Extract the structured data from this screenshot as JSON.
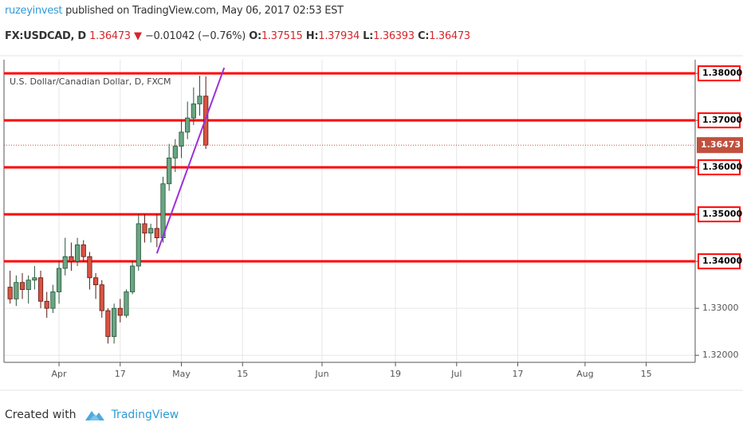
{
  "header": {
    "author": "ruzeyinvest",
    "published": "published on TradingView.com, May 06, 2017 02:53 EST",
    "symbol": "FX:USDCAD, D",
    "arrow": "▼",
    "change": "−0.01042 (−0.76%)",
    "o": "O:",
    "h": "H:",
    "l": "L:",
    "c": "C:"
  },
  "footer": {
    "created": "Created with",
    "brand": "TradingView"
  },
  "chart_data": {
    "type": "candlestick",
    "title": "U.S. Dollar/Canadian Dollar, D, FXCM",
    "x": [
      "2017-03-22",
      "2017-03-23",
      "2017-03-24",
      "2017-03-27",
      "2017-03-28",
      "2017-03-29",
      "2017-03-30",
      "2017-03-31",
      "2017-04-03",
      "2017-04-04",
      "2017-04-05",
      "2017-04-06",
      "2017-04-07",
      "2017-04-10",
      "2017-04-11",
      "2017-04-12",
      "2017-04-13",
      "2017-04-14",
      "2017-04-17",
      "2017-04-18",
      "2017-04-19",
      "2017-04-20",
      "2017-04-21",
      "2017-04-24",
      "2017-04-25",
      "2017-04-26",
      "2017-04-27",
      "2017-04-28",
      "2017-05-01",
      "2017-05-02",
      "2017-05-03",
      "2017-05-04",
      "2017-05-05"
    ],
    "open": [
      1.3345,
      1.332,
      1.3355,
      1.334,
      1.336,
      1.3365,
      1.3315,
      1.33,
      1.3335,
      1.3385,
      1.341,
      1.34,
      1.3435,
      1.341,
      1.3365,
      1.335,
      1.3295,
      1.324,
      1.33,
      1.3285,
      1.3335,
      1.339,
      1.348,
      1.346,
      1.347,
      1.345,
      1.3565,
      1.362,
      1.3645,
      1.3675,
      1.3705,
      1.3735,
      1.37515
    ],
    "high": [
      1.338,
      1.337,
      1.3375,
      1.337,
      1.339,
      1.338,
      1.3335,
      1.335,
      1.34,
      1.345,
      1.344,
      1.345,
      1.3445,
      1.342,
      1.3375,
      1.336,
      1.33,
      1.331,
      1.332,
      1.334,
      1.34,
      1.35,
      1.35,
      1.348,
      1.35,
      1.358,
      1.365,
      1.366,
      1.37,
      1.374,
      1.377,
      1.3795,
      1.37934
    ],
    "low": [
      1.331,
      1.3305,
      1.332,
      1.331,
      1.334,
      1.33,
      1.328,
      1.329,
      1.331,
      1.337,
      1.338,
      1.339,
      1.34,
      1.334,
      1.332,
      1.328,
      1.3225,
      1.3225,
      1.327,
      1.328,
      1.333,
      1.338,
      1.344,
      1.344,
      1.343,
      1.344,
      1.355,
      1.359,
      1.362,
      1.366,
      1.369,
      1.371,
      1.36393
    ],
    "close": [
      1.332,
      1.3355,
      1.334,
      1.336,
      1.3365,
      1.3315,
      1.33,
      1.3335,
      1.3385,
      1.341,
      1.34,
      1.3435,
      1.341,
      1.3365,
      1.335,
      1.3295,
      1.324,
      1.33,
      1.3285,
      1.3335,
      1.339,
      1.348,
      1.346,
      1.347,
      1.345,
      1.3565,
      1.362,
      1.3645,
      1.3675,
      1.3705,
      1.3735,
      1.37515,
      1.36473
    ],
    "up_color": "#6ba583",
    "down_color": "#d75442",
    "xlim": [
      "2017-03-21",
      "2017-08-25"
    ],
    "xticks": [
      {
        "value": "2017-04-03",
        "label": "Apr"
      },
      {
        "value": "2017-04-17",
        "label": "17"
      },
      {
        "value": "2017-05-01",
        "label": "May"
      },
      {
        "value": "2017-05-15",
        "label": "15"
      },
      {
        "value": "2017-06-01",
        "label": "Jun"
      },
      {
        "value": "2017-06-19",
        "label": "19"
      },
      {
        "value": "2017-07-03",
        "label": "Jul"
      },
      {
        "value": "2017-07-17",
        "label": "17"
      },
      {
        "value": "2017-08-01",
        "label": "Aug"
      },
      {
        "value": "2017-08-15",
        "label": "15"
      }
    ],
    "ylim": [
      1.3185,
      1.3829
    ],
    "yticks": [
      {
        "value": 1.32,
        "label": "1.32000"
      },
      {
        "value": 1.33,
        "label": "1.33000"
      },
      {
        "value": 1.34,
        "label": "1.34000"
      },
      {
        "value": 1.35,
        "label": "1.35000"
      },
      {
        "value": 1.36,
        "label": "1.36000"
      },
      {
        "value": 1.37,
        "label": "1.37000"
      },
      {
        "value": 1.38,
        "label": "1.38000"
      }
    ],
    "grid": true,
    "levels": [
      1.38,
      1.37,
      1.36,
      1.35,
      1.34
    ],
    "level_color": "#ff0000",
    "trendline": {
      "x": [
        "2017-04-25",
        "2017-05-10"
      ],
      "y": [
        1.3417,
        1.3812
      ],
      "color": "#9b30d9"
    }
  }
}
